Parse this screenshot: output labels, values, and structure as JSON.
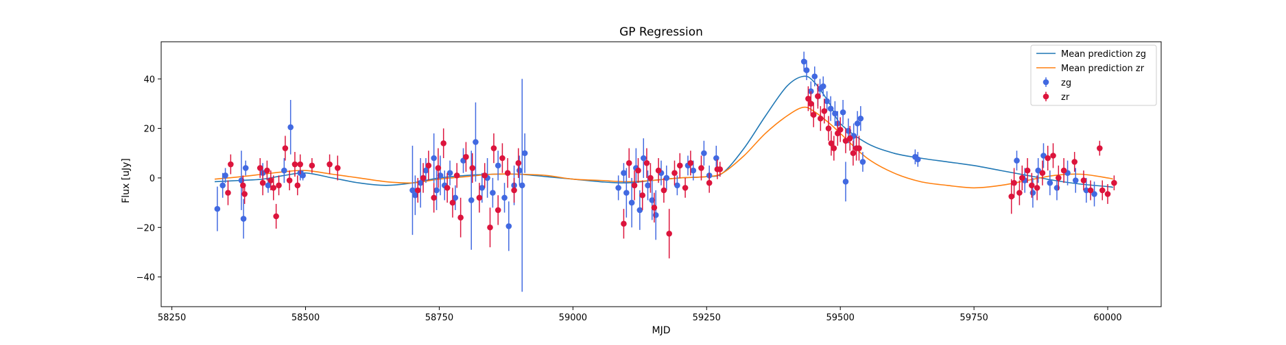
{
  "chart_data": {
    "type": "scatter",
    "title": "GP Regression",
    "xlabel": "MJD",
    "ylabel": "Flux [uJy]",
    "xlim": [
      58230,
      60100
    ],
    "ylim": [
      -52,
      55
    ],
    "xticks": [
      58250,
      58500,
      58750,
      59000,
      59250,
      59500,
      59750,
      60000
    ],
    "yticks": [
      -40,
      -20,
      0,
      20,
      40
    ],
    "grid": false,
    "legend_position": "top-right",
    "colors": {
      "mean_zg": "#1f77b4",
      "mean_zr": "#ff7f0e",
      "zg": "#4169e1",
      "zr": "#dc143c"
    },
    "legend": [
      "Mean prediction zg",
      "Mean prediction zr",
      "zg",
      "zr"
    ],
    "lines": [
      {
        "name": "Mean prediction zg",
        "color": "#1f77b4",
        "x": [
          58330,
          58380,
          58420,
          58460,
          58500,
          58550,
          58600,
          58650,
          58700,
          58750,
          58800,
          58850,
          58900,
          58950,
          59000,
          59050,
          59100,
          59150,
          59200,
          59250,
          59280,
          59320,
          59360,
          59400,
          59430,
          59450,
          59480,
          59500,
          59550,
          59600,
          59650,
          59700,
          59750,
          59800,
          59850,
          59900,
          59950,
          60000,
          60010
        ],
        "y": [
          -1.5,
          -1.0,
          -0.5,
          1.0,
          2.0,
          0.0,
          -2.0,
          -3.0,
          -2.0,
          0.0,
          1.0,
          1.5,
          1.5,
          0.5,
          -0.5,
          -1.5,
          -2.0,
          -1.0,
          0.0,
          0.5,
          2.0,
          12.0,
          25.0,
          37.0,
          41.0,
          39.0,
          30.0,
          22.0,
          14.0,
          10.0,
          8.0,
          6.5,
          5.0,
          3.0,
          1.0,
          -1.0,
          -2.5,
          -3.5,
          -3.8
        ]
      },
      {
        "name": "Mean prediction zr",
        "color": "#ff7f0e",
        "x": [
          58330,
          58380,
          58420,
          58460,
          58500,
          58550,
          58600,
          58650,
          58700,
          58750,
          58800,
          58850,
          58900,
          58950,
          59000,
          59050,
          59100,
          59150,
          59200,
          59250,
          59280,
          59320,
          59360,
          59400,
          59430,
          59450,
          59480,
          59500,
          59550,
          59600,
          59650,
          59700,
          59750,
          59800,
          59850,
          59900,
          59950,
          60000,
          60010
        ],
        "y": [
          -0.5,
          0.5,
          1.5,
          2.5,
          3.0,
          1.5,
          0.0,
          -1.5,
          -2.0,
          -0.5,
          0.5,
          1.5,
          1.5,
          1.0,
          -0.5,
          -1.0,
          -1.5,
          -1.0,
          0.0,
          0.5,
          2.0,
          9.0,
          18.0,
          25.0,
          28.5,
          27.0,
          22.0,
          18.0,
          8.0,
          2.0,
          -1.5,
          -3.0,
          -4.0,
          -3.0,
          -1.0,
          1.0,
          1.5,
          0.0,
          -0.5
        ]
      }
    ],
    "series": [
      {
        "name": "zg",
        "color": "#4169e1",
        "points": [
          {
            "x": 58335,
            "y": -12.5,
            "err": 9
          },
          {
            "x": 58345,
            "y": -3,
            "err": 5
          },
          {
            "x": 58350,
            "y": 1,
            "err": 3
          },
          {
            "x": 58380,
            "y": -1,
            "err": 12
          },
          {
            "x": 58384,
            "y": -16.5,
            "err": 8
          },
          {
            "x": 58388,
            "y": 4,
            "err": 3
          },
          {
            "x": 58420,
            "y": 2,
            "err": 4
          },
          {
            "x": 58430,
            "y": -3,
            "err": 3
          },
          {
            "x": 58460,
            "y": 3,
            "err": 5
          },
          {
            "x": 58472,
            "y": 20.5,
            "err": 11
          },
          {
            "x": 58490,
            "y": 2,
            "err": 3
          },
          {
            "x": 58495,
            "y": 1,
            "err": 2
          },
          {
            "x": 58700,
            "y": -5,
            "err": 18
          },
          {
            "x": 58705,
            "y": -7,
            "err": 8
          },
          {
            "x": 58715,
            "y": -2,
            "err": 10
          },
          {
            "x": 58725,
            "y": 3,
            "err": 5
          },
          {
            "x": 58740,
            "y": 8,
            "err": 10
          },
          {
            "x": 58745,
            "y": -5,
            "err": 8
          },
          {
            "x": 58752,
            "y": 1,
            "err": 8
          },
          {
            "x": 58760,
            "y": -3,
            "err": 6
          },
          {
            "x": 58770,
            "y": 2,
            "err": 5
          },
          {
            "x": 58780,
            "y": -8,
            "err": 5
          },
          {
            "x": 58795,
            "y": 7,
            "err": 5
          },
          {
            "x": 58810,
            "y": -9,
            "err": 20
          },
          {
            "x": 58818,
            "y": 14.5,
            "err": 16
          },
          {
            "x": 58830,
            "y": -4,
            "err": 6
          },
          {
            "x": 58840,
            "y": 0,
            "err": 8
          },
          {
            "x": 58850,
            "y": -6,
            "err": 6
          },
          {
            "x": 58860,
            "y": 5,
            "err": 6
          },
          {
            "x": 58872,
            "y": -8,
            "err": 6
          },
          {
            "x": 58880,
            "y": -19.5,
            "err": 10
          },
          {
            "x": 58890,
            "y": -3,
            "err": 8
          },
          {
            "x": 58900,
            "y": 3,
            "err": 6
          },
          {
            "x": 58905,
            "y": -3,
            "err": 43
          },
          {
            "x": 58910,
            "y": 10,
            "err": 8
          },
          {
            "x": 59085,
            "y": -4,
            "err": 5
          },
          {
            "x": 59095,
            "y": 2,
            "err": 4
          },
          {
            "x": 59100,
            "y": -6,
            "err": 10
          },
          {
            "x": 59110,
            "y": -10,
            "err": 10
          },
          {
            "x": 59118,
            "y": 4,
            "err": 8
          },
          {
            "x": 59125,
            "y": -13,
            "err": 8
          },
          {
            "x": 59132,
            "y": 8,
            "err": 8
          },
          {
            "x": 59140,
            "y": -3,
            "err": 6
          },
          {
            "x": 59148,
            "y": -9,
            "err": 8
          },
          {
            "x": 59155,
            "y": -15,
            "err": 10
          },
          {
            "x": 59165,
            "y": 2,
            "err": 5
          },
          {
            "x": 59175,
            "y": 0,
            "err": 5
          },
          {
            "x": 59195,
            "y": -3,
            "err": 4
          },
          {
            "x": 59215,
            "y": 5,
            "err": 4
          },
          {
            "x": 59225,
            "y": 3,
            "err": 4
          },
          {
            "x": 59245,
            "y": 10,
            "err": 5
          },
          {
            "x": 59255,
            "y": 1,
            "err": 4
          },
          {
            "x": 59268,
            "y": 8,
            "err": 5
          },
          {
            "x": 59432,
            "y": 47,
            "err": 4
          },
          {
            "x": 59437,
            "y": 43.5,
            "err": 4
          },
          {
            "x": 59445,
            "y": 35,
            "err": 4
          },
          {
            "x": 59452,
            "y": 41,
            "err": 4
          },
          {
            "x": 59458,
            "y": 33,
            "err": 4
          },
          {
            "x": 59462,
            "y": 36,
            "err": 4
          },
          {
            "x": 59468,
            "y": 37,
            "err": 4
          },
          {
            "x": 59475,
            "y": 31,
            "err": 4
          },
          {
            "x": 59482,
            "y": 28,
            "err": 5
          },
          {
            "x": 59490,
            "y": 26,
            "err": 5
          },
          {
            "x": 59495,
            "y": 22,
            "err": 5
          },
          {
            "x": 59505,
            "y": 26.5,
            "err": 5
          },
          {
            "x": 59510,
            "y": -1.5,
            "err": 8
          },
          {
            "x": 59515,
            "y": 19,
            "err": 5
          },
          {
            "x": 59525,
            "y": 17,
            "err": 5
          },
          {
            "x": 59532,
            "y": 22,
            "err": 5
          },
          {
            "x": 59538,
            "y": 24,
            "err": 5
          },
          {
            "x": 59542,
            "y": 6.5,
            "err": 4
          },
          {
            "x": 59640,
            "y": 8.5,
            "err": 3
          },
          {
            "x": 59645,
            "y": 7.5,
            "err": 3
          },
          {
            "x": 59830,
            "y": 7,
            "err": 4
          },
          {
            "x": 59845,
            "y": -1,
            "err": 5
          },
          {
            "x": 59860,
            "y": -6,
            "err": 6
          },
          {
            "x": 59870,
            "y": 3,
            "err": 5
          },
          {
            "x": 59880,
            "y": 9,
            "err": 5
          },
          {
            "x": 59892,
            "y": -2,
            "err": 5
          },
          {
            "x": 59905,
            "y": -4,
            "err": 5
          },
          {
            "x": 59925,
            "y": 2,
            "err": 5
          },
          {
            "x": 59940,
            "y": -1,
            "err": 5
          },
          {
            "x": 59960,
            "y": -5,
            "err": 5
          },
          {
            "x": 59975,
            "y": -6.5,
            "err": 5
          }
        ]
      },
      {
        "name": "zr",
        "color": "#dc143c",
        "points": [
          {
            "x": 58355,
            "y": -6,
            "err": 5
          },
          {
            "x": 58360,
            "y": 5.5,
            "err": 4
          },
          {
            "x": 58383,
            "y": -3,
            "err": 4
          },
          {
            "x": 58386,
            "y": -6.5,
            "err": 4
          },
          {
            "x": 58415,
            "y": 4,
            "err": 4
          },
          {
            "x": 58420,
            "y": -2,
            "err": 5
          },
          {
            "x": 58428,
            "y": 3,
            "err": 4
          },
          {
            "x": 58435,
            "y": -1,
            "err": 4
          },
          {
            "x": 58440,
            "y": -4,
            "err": 5
          },
          {
            "x": 58445,
            "y": -15.5,
            "err": 5
          },
          {
            "x": 58450,
            "y": -3,
            "err": 4
          },
          {
            "x": 58462,
            "y": 12,
            "err": 5
          },
          {
            "x": 58470,
            "y": -1,
            "err": 4
          },
          {
            "x": 58480,
            "y": 5.5,
            "err": 5
          },
          {
            "x": 58485,
            "y": -3,
            "err": 4
          },
          {
            "x": 58490,
            "y": 5.5,
            "err": 4
          },
          {
            "x": 58512,
            "y": 5,
            "err": 3
          },
          {
            "x": 58545,
            "y": 5.5,
            "err": 4
          },
          {
            "x": 58560,
            "y": 4,
            "err": 5
          },
          {
            "x": 58710,
            "y": -5,
            "err": 5
          },
          {
            "x": 58720,
            "y": 0,
            "err": 6
          },
          {
            "x": 58730,
            "y": 5,
            "err": 6
          },
          {
            "x": 58740,
            "y": -8,
            "err": 6
          },
          {
            "x": 58748,
            "y": 4,
            "err": 8
          },
          {
            "x": 58758,
            "y": 14,
            "err": 6
          },
          {
            "x": 58765,
            "y": -4,
            "err": 6
          },
          {
            "x": 58775,
            "y": -10,
            "err": 6
          },
          {
            "x": 58783,
            "y": 1,
            "err": 5
          },
          {
            "x": 58790,
            "y": -16,
            "err": 8
          },
          {
            "x": 58800,
            "y": 8.5,
            "err": 6
          },
          {
            "x": 58812,
            "y": 4,
            "err": 6
          },
          {
            "x": 58825,
            "y": -8,
            "err": 6
          },
          {
            "x": 58835,
            "y": 1,
            "err": 5
          },
          {
            "x": 58845,
            "y": -20,
            "err": 8
          },
          {
            "x": 58852,
            "y": 12,
            "err": 6
          },
          {
            "x": 58860,
            "y": -13,
            "err": 6
          },
          {
            "x": 58868,
            "y": 8,
            "err": 6
          },
          {
            "x": 58878,
            "y": 2,
            "err": 6
          },
          {
            "x": 58890,
            "y": -5,
            "err": 5
          },
          {
            "x": 58898,
            "y": 6,
            "err": 6
          },
          {
            "x": 59095,
            "y": -18.5,
            "err": 6
          },
          {
            "x": 59105,
            "y": 6,
            "err": 6
          },
          {
            "x": 59115,
            "y": -3,
            "err": 6
          },
          {
            "x": 59122,
            "y": 3,
            "err": 5
          },
          {
            "x": 59130,
            "y": -7,
            "err": 6
          },
          {
            "x": 59138,
            "y": 6,
            "err": 6
          },
          {
            "x": 59145,
            "y": 0,
            "err": 6
          },
          {
            "x": 59152,
            "y": -12,
            "err": 6
          },
          {
            "x": 59160,
            "y": 3,
            "err": 5
          },
          {
            "x": 59170,
            "y": -5,
            "err": 5
          },
          {
            "x": 59180,
            "y": -22.5,
            "err": 10
          },
          {
            "x": 59190,
            "y": 2,
            "err": 5
          },
          {
            "x": 59200,
            "y": 5,
            "err": 5
          },
          {
            "x": 59210,
            "y": -4,
            "err": 4
          },
          {
            "x": 59220,
            "y": 6,
            "err": 5
          },
          {
            "x": 59240,
            "y": 4,
            "err": 5
          },
          {
            "x": 59255,
            "y": -2,
            "err": 4
          },
          {
            "x": 59270,
            "y": 3.5,
            "err": 4
          },
          {
            "x": 59275,
            "y": 3.5,
            "err": 3
          },
          {
            "x": 59440,
            "y": 32,
            "err": 5
          },
          {
            "x": 59445,
            "y": 30,
            "err": 5
          },
          {
            "x": 59450,
            "y": 25.5,
            "err": 5
          },
          {
            "x": 59458,
            "y": 33,
            "err": 5
          },
          {
            "x": 59463,
            "y": 24,
            "err": 5
          },
          {
            "x": 59470,
            "y": 27,
            "err": 5
          },
          {
            "x": 59478,
            "y": 20,
            "err": 5
          },
          {
            "x": 59483,
            "y": 14,
            "err": 5
          },
          {
            "x": 59488,
            "y": 12,
            "err": 5
          },
          {
            "x": 59495,
            "y": 18,
            "err": 5
          },
          {
            "x": 59500,
            "y": 19.5,
            "err": 5
          },
          {
            "x": 59510,
            "y": 15,
            "err": 5
          },
          {
            "x": 59518,
            "y": 16,
            "err": 5
          },
          {
            "x": 59524,
            "y": 10,
            "err": 5
          },
          {
            "x": 59530,
            "y": 12,
            "err": 5
          },
          {
            "x": 59535,
            "y": 12,
            "err": 5
          },
          {
            "x": 59820,
            "y": -7.5,
            "err": 7
          },
          {
            "x": 59825,
            "y": -2,
            "err": 6
          },
          {
            "x": 59835,
            "y": -6,
            "err": 5
          },
          {
            "x": 59840,
            "y": 0,
            "err": 5
          },
          {
            "x": 59850,
            "y": 3,
            "err": 5
          },
          {
            "x": 59858,
            "y": -3,
            "err": 5
          },
          {
            "x": 59868,
            "y": -4,
            "err": 5
          },
          {
            "x": 59878,
            "y": 2,
            "err": 5
          },
          {
            "x": 59888,
            "y": 8,
            "err": 5
          },
          {
            "x": 59898,
            "y": 9,
            "err": 5
          },
          {
            "x": 59908,
            "y": 0,
            "err": 5
          },
          {
            "x": 59918,
            "y": 3,
            "err": 5
          },
          {
            "x": 59938,
            "y": 6.5,
            "err": 4
          },
          {
            "x": 59955,
            "y": -1,
            "err": 4
          },
          {
            "x": 59968,
            "y": -5,
            "err": 4
          },
          {
            "x": 59985,
            "y": 12,
            "err": 3
          },
          {
            "x": 59990,
            "y": -5,
            "err": 4
          },
          {
            "x": 60000,
            "y": -6.5,
            "err": 4
          },
          {
            "x": 60012,
            "y": -2,
            "err": 3
          }
        ]
      }
    ]
  }
}
